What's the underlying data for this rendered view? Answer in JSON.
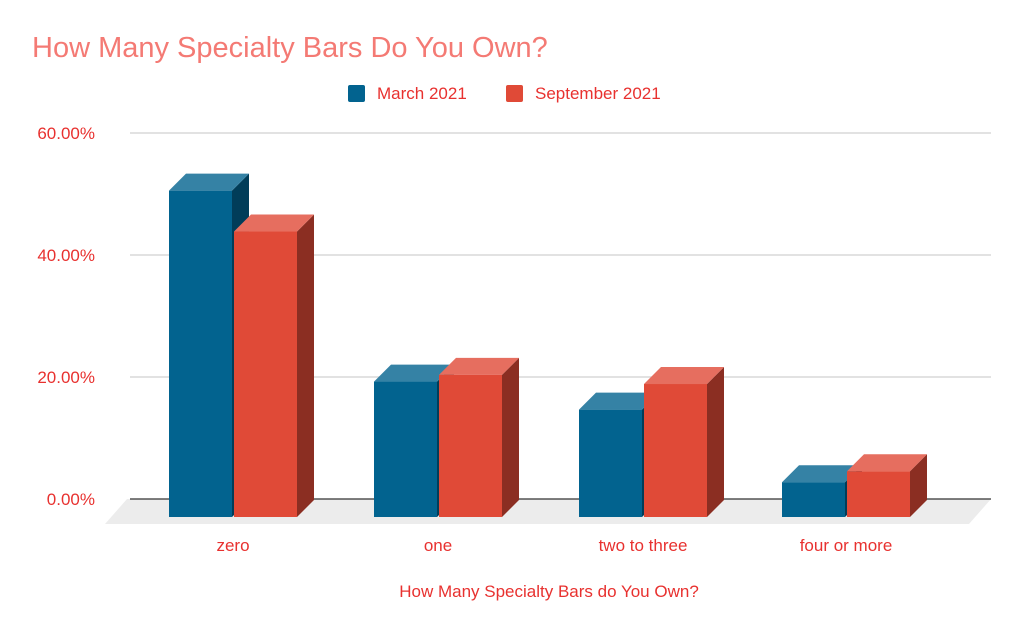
{
  "chart_data": {
    "type": "bar",
    "title": "How Many Specialty Bars Do You Own?",
    "xlabel": "How Many Specialty Bars do You Own?",
    "ylabel": "",
    "categories": [
      "zero",
      "one",
      "two to three",
      "four or more"
    ],
    "series": [
      {
        "name": "March 2021",
        "values": [
          53.5,
          22.2,
          17.6,
          5.7
        ],
        "color": "#02638f"
      },
      {
        "name": "September 2021",
        "values": [
          46.8,
          23.3,
          21.8,
          7.5
        ],
        "color": "#e04a37"
      }
    ],
    "ylim": [
      0,
      60
    ],
    "yticks": [
      "0.00%",
      "20.00%",
      "40.00%",
      "60.00%"
    ],
    "ytick_values": [
      0,
      20,
      40,
      60
    ],
    "grid": true,
    "legend": "top-center",
    "style": "3d",
    "text_color": "#e8312f",
    "title_color": "#f47a74"
  }
}
